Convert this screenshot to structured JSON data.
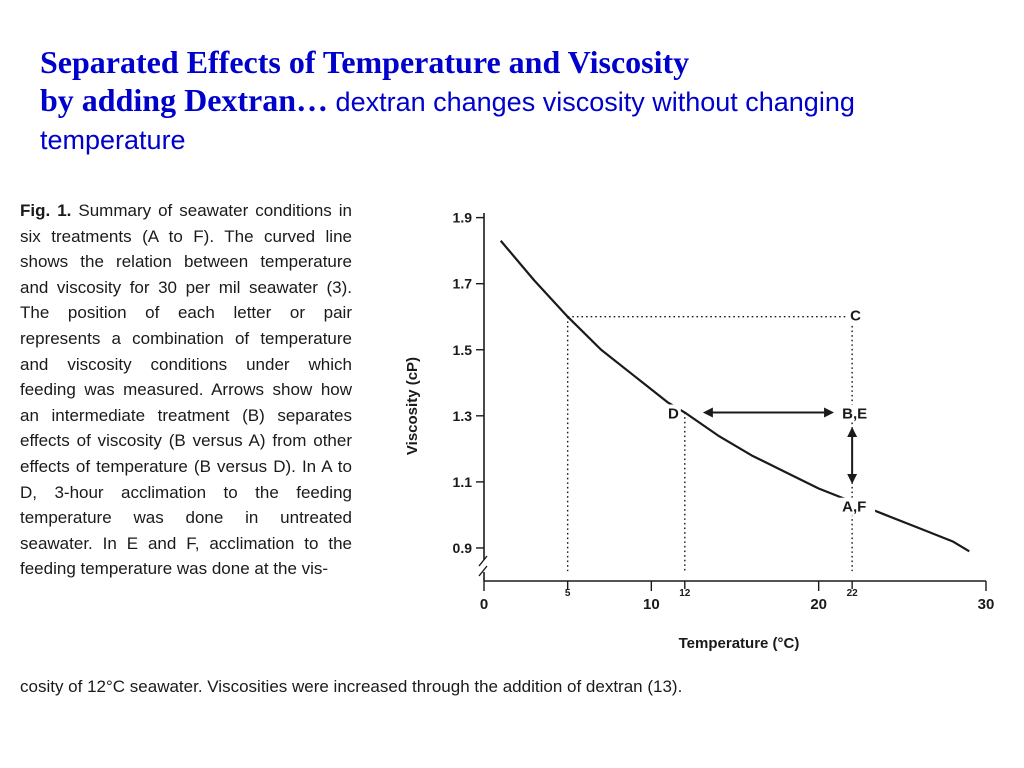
{
  "slide": {
    "title_line1": "Separated Effects of Temperature and Viscosity",
    "title_line2_bold": "by adding Dextran…",
    "title_line2_rest": " dextran changes viscosity without changing temperature"
  },
  "caption": {
    "label": "Fig. 1.",
    "body": " Summary of seawater conditions in six treatments (A to F). The curved line shows the relation between temperature and viscosity for 30 per mil seawater (3). The position of each letter or pair represents a combination of temperature and viscosity conditions under which feeding was measured. Arrows show how an intermediate treatment (B) separates effects of viscosity (B versus A) from other effects of temperature (B versus D). In A to D, 3-hour acclimation to the feeding temperature was done in untreated seawater. In E and F, acclimation to the feeding temperature was done at the vis-",
    "tail": "cosity of 12°C seawater. Viscosities were increased through the addition of dextran (13)."
  },
  "chart_data": {
    "type": "line",
    "xlabel": "Temperature (°C)",
    "ylabel": "Viscosity (cP)",
    "xlim": [
      0,
      30
    ],
    "ylim": [
      0.8,
      1.92
    ],
    "x_ticks": [
      {
        "value": 0,
        "label": "0",
        "size": "large"
      },
      {
        "value": 5,
        "label": "5",
        "size": "small"
      },
      {
        "value": 10,
        "label": "10",
        "size": "large"
      },
      {
        "value": 12,
        "label": "12",
        "size": "small"
      },
      {
        "value": 20,
        "label": "20",
        "size": "large"
      },
      {
        "value": 22,
        "label": "22",
        "size": "small"
      },
      {
        "value": 30,
        "label": "30",
        "size": "large"
      }
    ],
    "y_ticks": [
      {
        "value": 0.9,
        "label": "0.9"
      },
      {
        "value": 1.1,
        "label": "1.1"
      },
      {
        "value": 1.3,
        "label": "1.3"
      },
      {
        "value": 1.5,
        "label": "1.5"
      },
      {
        "value": 1.7,
        "label": "1.7"
      },
      {
        "value": 1.9,
        "label": "1.9"
      }
    ],
    "curve": {
      "x": [
        1,
        3,
        5,
        7,
        9,
        11,
        12,
        14,
        16,
        18,
        20,
        22,
        24,
        26,
        28,
        29
      ],
      "y": [
        1.83,
        1.71,
        1.6,
        1.5,
        1.42,
        1.34,
        1.31,
        1.24,
        1.18,
        1.13,
        1.08,
        1.04,
        1.0,
        0.96,
        0.92,
        0.89
      ]
    },
    "points": [
      {
        "label": "C",
        "x": 22,
        "y": 1.6
      },
      {
        "label": "D",
        "x": 12,
        "y": 1.31
      },
      {
        "label": "B,E",
        "x": 22,
        "y": 1.31
      },
      {
        "label": "A,F",
        "x": 22,
        "y": 1.04
      }
    ],
    "guides": [
      {
        "x1": 5,
        "y1": 1.6,
        "x2": 22,
        "y2": 1.6
      },
      {
        "x1": 5,
        "y1": 1.6,
        "x2": 5,
        "y2": 0.83
      },
      {
        "x1": 12,
        "y1": 1.31,
        "x2": 12,
        "y2": 0.83
      },
      {
        "x1": 22,
        "y1": 1.6,
        "x2": 22,
        "y2": 0.83
      }
    ],
    "arrows": [
      {
        "from": [
          13.2,
          1.31
        ],
        "to": [
          20.8,
          1.31
        ],
        "double": true
      },
      {
        "from": [
          22,
          1.26
        ],
        "to": [
          22,
          1.1
        ],
        "double": true
      }
    ]
  },
  "colors": {
    "title": "#0000cc",
    "ink": "#1a1a1a"
  }
}
